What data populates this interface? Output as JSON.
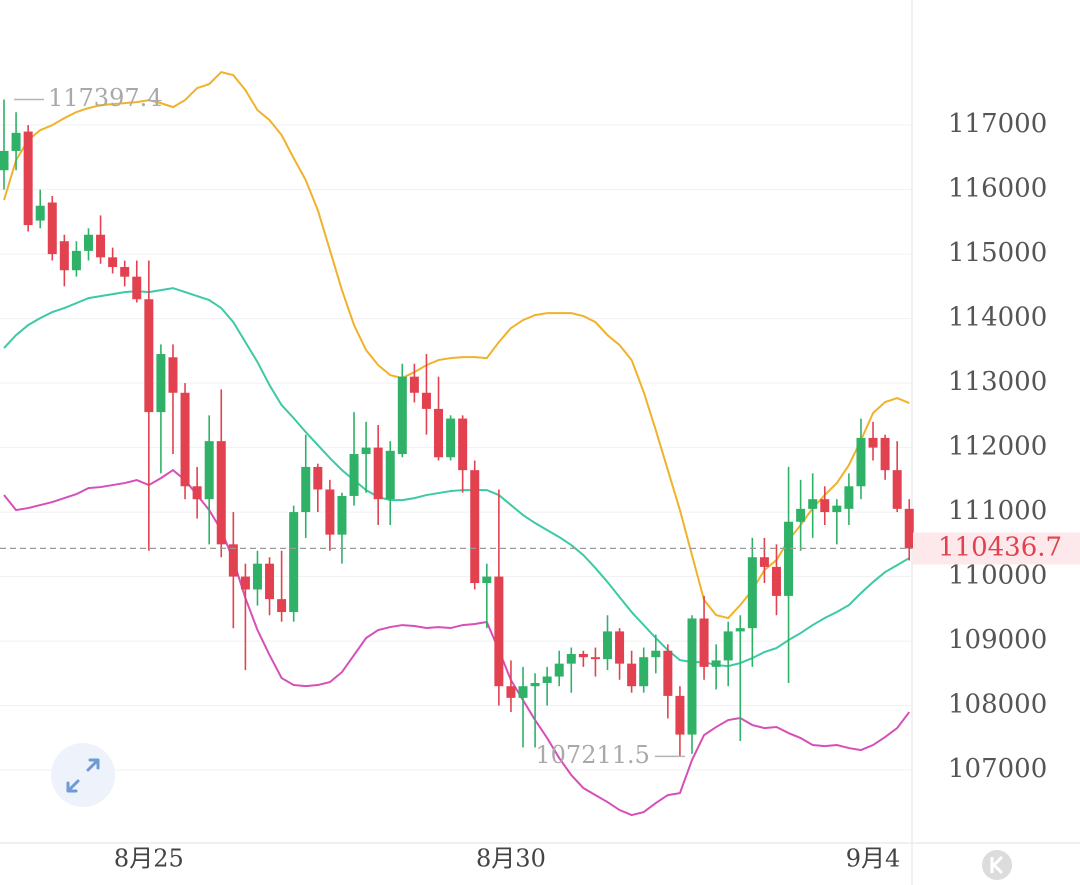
{
  "chart_data": {
    "type": "candlestick",
    "categories": [
      null,
      null,
      null,
      null,
      null,
      null,
      null,
      null,
      null,
      null,
      null,
      null,
      "8月25",
      null,
      null,
      null,
      null,
      null,
      null,
      null,
      null,
      null,
      null,
      null,
      null,
      null,
      null,
      null,
      null,
      null,
      null,
      null,
      null,
      null,
      null,
      null,
      null,
      null,
      null,
      null,
      null,
      null,
      "8月30",
      null,
      null,
      null,
      null,
      null,
      null,
      null,
      null,
      null,
      null,
      null,
      null,
      null,
      null,
      null,
      null,
      null,
      null,
      null,
      null,
      null,
      null,
      null,
      null,
      null,
      null,
      null,
      null,
      null,
      "9月4",
      null,
      null,
      null
    ],
    "open": [
      116300,
      116600,
      116900,
      115520,
      115800,
      115200,
      114750,
      115050,
      115300,
      114950,
      114800,
      114650,
      114300,
      112550,
      113400,
      112850,
      111400,
      111200,
      112100,
      110500,
      110000,
      109800,
      110200,
      109650,
      109450,
      111000,
      111700,
      111350,
      110650,
      111250,
      111900,
      112000,
      111200,
      111900,
      113100,
      112850,
      112600,
      111850,
      112450,
      111650,
      109900,
      110000,
      108300,
      108120,
      108300,
      108350,
      108450,
      108650,
      108800,
      108750,
      108720,
      109150,
      108650,
      108300,
      108750,
      108850,
      108150,
      107550,
      109350,
      108600,
      108700,
      109150,
      109200,
      110300,
      110150,
      109700,
      110850,
      111050,
      111200,
      111000,
      111050,
      111400,
      112150,
      112150,
      111650,
      111050
    ],
    "high": [
      117397.4,
      117200,
      117000,
      116000,
      115900,
      115300,
      115200,
      115400,
      115600,
      115100,
      114900,
      114900,
      114900,
      113600,
      113600,
      113000,
      111700,
      112500,
      112900,
      111000,
      110200,
      110400,
      110300,
      110400,
      111100,
      112200,
      111750,
      111500,
      111300,
      112550,
      112400,
      112350,
      112100,
      113300,
      113300,
      113450,
      113100,
      112500,
      112500,
      111800,
      110200,
      111350,
      108700,
      108600,
      108500,
      108600,
      108850,
      108900,
      108850,
      108900,
      109400,
      109200,
      108850,
      108900,
      109100,
      108950,
      108300,
      109400,
      109700,
      108950,
      109300,
      109400,
      110600,
      110600,
      110500,
      111700,
      111500,
      111600,
      111400,
      111200,
      111600,
      112450,
      112400,
      112200,
      112100,
      111200
    ],
    "low": [
      116000,
      116300,
      115350,
      115400,
      114900,
      114500,
      114650,
      114900,
      114850,
      114700,
      114500,
      114250,
      110400,
      111600,
      111900,
      111200,
      110900,
      110500,
      110300,
      109200,
      108550,
      109550,
      109400,
      109300,
      109300,
      110600,
      111000,
      110400,
      110200,
      111100,
      111300,
      110800,
      110800,
      111850,
      112700,
      112200,
      111800,
      111800,
      111300,
      109800,
      109200,
      108000,
      107900,
      107350,
      107350,
      108000,
      108300,
      108200,
      108600,
      108450,
      108550,
      108400,
      108200,
      108200,
      108500,
      107800,
      107211.5,
      107250,
      108400,
      108250,
      108300,
      107450,
      108600,
      109900,
      109400,
      108350,
      110400,
      110600,
      110800,
      110500,
      110800,
      111200,
      111800,
      111500,
      111000,
      110250
    ],
    "close": [
      116600,
      116880,
      115450,
      115750,
      115000,
      114750,
      115050,
      115300,
      114950,
      114800,
      114650,
      114300,
      112550,
      113450,
      112850,
      111400,
      111200,
      112100,
      110500,
      110000,
      109800,
      110200,
      109650,
      109450,
      111000,
      111700,
      111350,
      110650,
      111250,
      111900,
      112000,
      111200,
      111950,
      113100,
      112850,
      112600,
      111850,
      112450,
      111650,
      109900,
      110000,
      108300,
      108120,
      108300,
      108350,
      108450,
      108650,
      108800,
      108750,
      108720,
      109150,
      108650,
      108300,
      108750,
      108850,
      108150,
      107550,
      109350,
      108600,
      108700,
      109150,
      109200,
      110300,
      110150,
      109700,
      110850,
      111050,
      111200,
      111000,
      111100,
      111400,
      112150,
      112000,
      111650,
      111050,
      110436.7
    ],
    "up_color": "#2fb167",
    "down_color": "#e2414f",
    "lines": [
      {
        "color": "#f0b22a",
        "values": [
          115837,
          116457,
          116767,
          116922,
          117000,
          117109,
          117202,
          117264,
          117310,
          117326,
          117341,
          117357,
          117388,
          117341,
          117279,
          117388,
          117574,
          117636,
          117822,
          117775,
          117543,
          117233,
          117078,
          116845,
          116488,
          116147,
          115682,
          115062,
          114442,
          113899,
          113512,
          113279,
          113124,
          113078,
          113171,
          113279,
          113357,
          113388,
          113403,
          113403,
          113388,
          113636,
          113853,
          113977,
          114054,
          114085,
          114085,
          114085,
          114039,
          113946,
          113744,
          113589,
          113357,
          112861,
          112271,
          111651,
          111031,
          110333,
          109636,
          109403,
          109357,
          109558,
          109791,
          110101,
          110256,
          110566,
          110798,
          111062,
          111264,
          111450,
          111729,
          112116,
          112535,
          112706,
          112768,
          112690
        ]
      },
      {
        "color": "#3cc9a5",
        "values": [
          113543,
          113744,
          113899,
          114008,
          114101,
          114163,
          114240,
          114318,
          114349,
          114380,
          114411,
          114426,
          114411,
          114442,
          114473,
          114411,
          114349,
          114287,
          114163,
          113946,
          113636,
          113326,
          112969,
          112659,
          112457,
          112240,
          112039,
          111837,
          111651,
          111496,
          111341,
          111233,
          111186,
          111186,
          111217,
          111264,
          111295,
          111326,
          111341,
          111341,
          111341,
          111264,
          111109,
          110954,
          110830,
          110721,
          110612,
          110488,
          110333,
          110132,
          109915,
          109682,
          109450,
          109248,
          109047,
          108860,
          108705,
          108674,
          108674,
          108628,
          108612,
          108659,
          108736,
          108829,
          108891,
          109016,
          109124,
          109248,
          109357,
          109450,
          109558,
          109744,
          109915,
          110070,
          110178,
          110287
        ]
      },
      {
        "color": "#d64fb9",
        "values": [
          111264,
          111031,
          111062,
          111109,
          111155,
          111217,
          111279,
          111372,
          111388,
          111419,
          111450,
          111496,
          111419,
          111527,
          111651,
          111496,
          111264,
          111031,
          110721,
          110256,
          109667,
          109171,
          108783,
          108426,
          108318,
          108302,
          108318,
          108364,
          108519,
          108783,
          109047,
          109171,
          109217,
          109248,
          109233,
          109202,
          109217,
          109202,
          109248,
          109264,
          109295,
          108860,
          108395,
          108085,
          107775,
          107496,
          107186,
          106922,
          106721,
          106612,
          106504,
          106380,
          106302,
          106349,
          106488,
          106612,
          106643,
          107155,
          107543,
          107667,
          107775,
          107806,
          107698,
          107651,
          107667,
          107574,
          107496,
          107388,
          107372,
          107388,
          107341,
          107310,
          107388,
          107512,
          107651,
          107899
        ]
      }
    ],
    "ylim": [
      105900,
      118940
    ],
    "yticks": [
      107000,
      108000,
      109000,
      110000,
      111000,
      112000,
      113000,
      114000,
      115000,
      116000,
      117000
    ],
    "grid": true
  }
}
